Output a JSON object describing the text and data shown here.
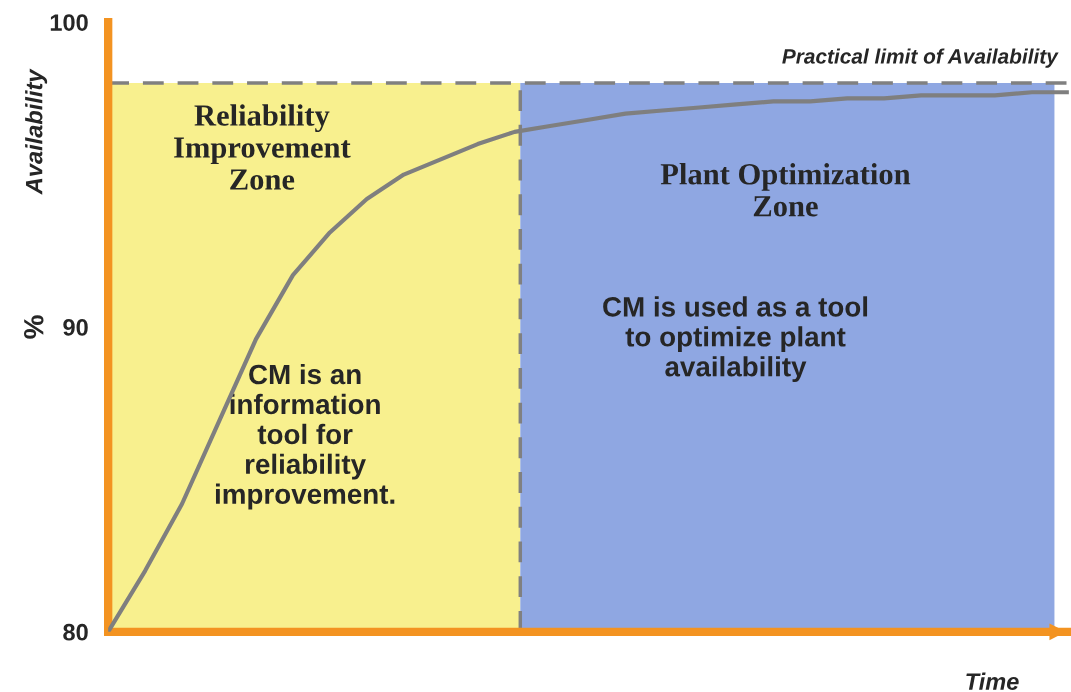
{
  "chart_data": {
    "type": "line",
    "categories": [
      null,
      null,
      null,
      null,
      null,
      null,
      null,
      null,
      null,
      null,
      null,
      null,
      null,
      null,
      null,
      null,
      null,
      null,
      null,
      null,
      null,
      null,
      null,
      null,
      null,
      null,
      null
    ],
    "series": [
      {
        "color": "#7f7f7f",
        "values": [
          80,
          82.0,
          84.2,
          86.9,
          89.6,
          91.7,
          93.1,
          94.2,
          95.0,
          95.5,
          96.0,
          96.4,
          96.6,
          96.8,
          97.0,
          97.1,
          97.2,
          97.3,
          97.4,
          97.4,
          97.5,
          97.5,
          97.6,
          97.6,
          97.6,
          97.7,
          97.7
        ]
      }
    ],
    "xlabel": "Time",
    "ylabel": "Availability",
    "ylim": [
      80,
      100
    ],
    "yticks": [
      80,
      90,
      100
    ],
    "tick_labels": "y",
    "grid": false,
    "marker": "none",
    "line_style": "solid",
    "ref_lines": [
      {
        "axis": "y",
        "value": 98,
        "label": "Practical limit of Availability",
        "color": "#808080",
        "line_style": "dashed"
      }
    ],
    "annotations": [
      "%",
      "Reliability\nImprovement\nZone",
      "Plant Optimization\nZone",
      "CM is an\ninformation\ntool for\nreliability\nimprovement.",
      "CM is used as a tool\nto optimize plant\navailability"
    ]
  }
}
